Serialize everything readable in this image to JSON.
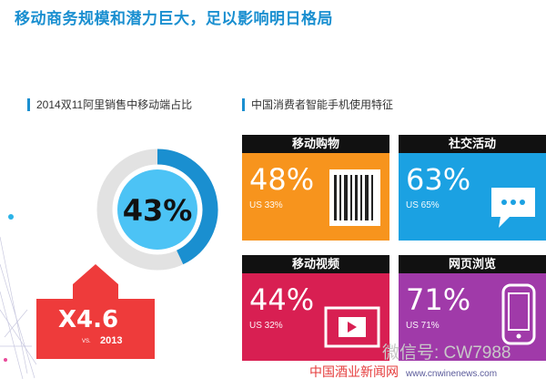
{
  "title": "移动商务规模和潜力巨大，足以影响明日格局",
  "left_section": {
    "label": "2014双11阿里销售中移动端占比"
  },
  "right_section": {
    "label": "中国消费者智能手机使用特征"
  },
  "chart_data": [
    {
      "type": "pie",
      "title": "2014双11阿里销售中移动端占比",
      "values": [
        43,
        57
      ],
      "center_label": "43%",
      "growth": {
        "value": "X4.6",
        "vs": "VS.",
        "year": "2013"
      }
    },
    {
      "type": "table",
      "title": "中国消费者智能手机使用特征",
      "tiles": [
        {
          "name": "移动购物",
          "value": 48,
          "value_label": "48%",
          "us_label": "US 33%",
          "us_value": 33,
          "color": "#f7941d",
          "icon": "barcode-icon"
        },
        {
          "name": "社交活动",
          "value": 63,
          "value_label": "63%",
          "us_label": "US 65%",
          "us_value": 65,
          "color": "#1ba1e2",
          "icon": "chat-bubble-icon"
        },
        {
          "name": "移动视频",
          "value": 44,
          "value_label": "44%",
          "us_label": "US 32%",
          "us_value": 32,
          "color": "#d81f52",
          "icon": "video-play-icon"
        },
        {
          "name": "网页浏览",
          "value": 71,
          "value_label": "71%",
          "us_label": "US 71%",
          "us_value": 71,
          "color": "#a03aa9",
          "icon": "smartphone-icon"
        }
      ]
    }
  ],
  "colors": {
    "accent": "#1a8fd0",
    "donut_ring": "#1a8fd0",
    "donut_track": "#e2e2e2",
    "donut_center": "#4cc3f5",
    "arrow": "#ee3b3b"
  },
  "watermark": "微信号: CW7988",
  "footer": {
    "site": "中国酒业新闻网",
    "url": "www.cnwinenews.com"
  }
}
